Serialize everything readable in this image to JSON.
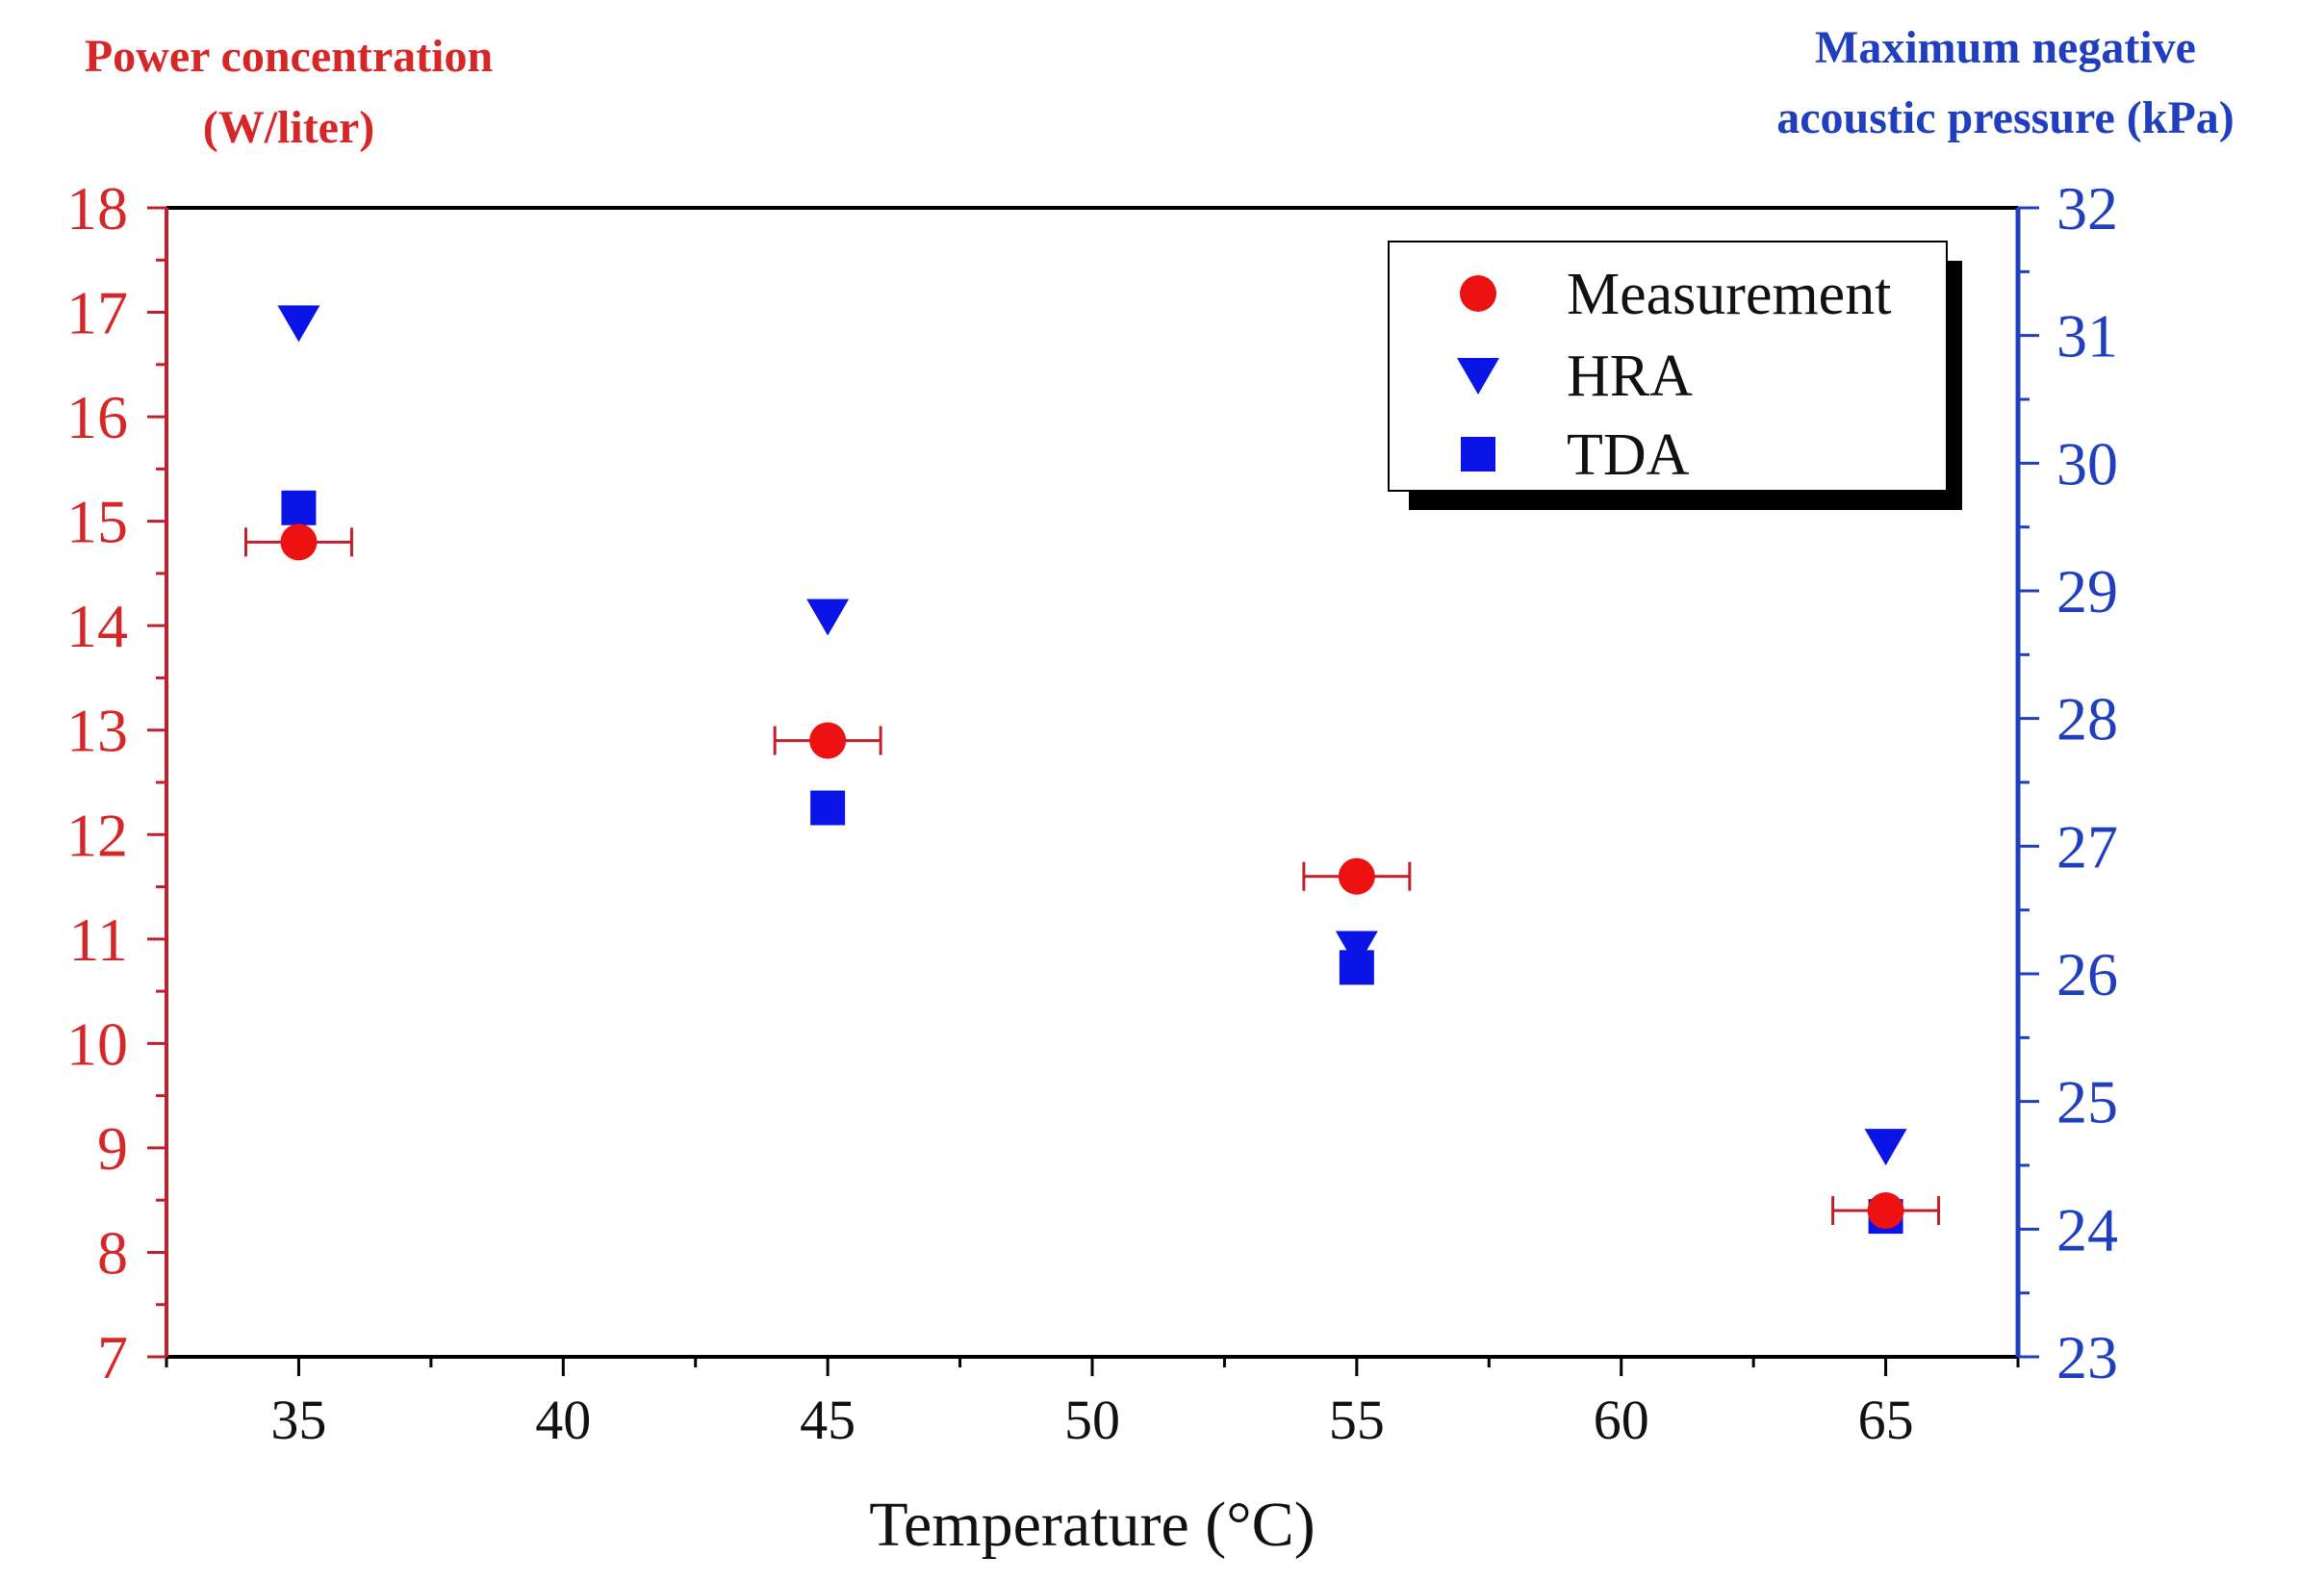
{
  "chart_data": {
    "type": "scatter",
    "x": [
      35,
      45,
      55,
      65
    ],
    "xlabel": "Temperature (°C)",
    "xlim": [
      32.5,
      67.5
    ],
    "xticks": [
      35,
      40,
      45,
      50,
      55,
      60,
      65
    ],
    "left_axis": {
      "title_line1": "Power concentration",
      "title_line2": "(W/liter)",
      "color": "#d62728",
      "ylim": [
        7,
        18
      ],
      "ticks": [
        7,
        8,
        9,
        10,
        11,
        12,
        13,
        14,
        15,
        16,
        17,
        18
      ]
    },
    "right_axis": {
      "title_line1": "Maximum negative",
      "title_line2": "acoustic pressure (kPa)",
      "color": "#1f3fbf",
      "ylim": [
        23,
        32
      ],
      "ticks": [
        23,
        24,
        25,
        26,
        27,
        28,
        29,
        30,
        31,
        32
      ]
    },
    "series": [
      {
        "name": "Measurement",
        "axis": "left",
        "marker": "circle",
        "color": "#ee1111",
        "values": [
          14.8,
          12.9,
          11.6,
          8.4
        ],
        "x_error": [
          1.0,
          1.0,
          1.0,
          1.0
        ]
      },
      {
        "name": "HRA",
        "axis": "right",
        "marker": "triangle-down",
        "color": "#0a14e6",
        "values": [
          31.1,
          28.8,
          26.2,
          24.65
        ]
      },
      {
        "name": "TDA",
        "axis": "right",
        "marker": "square",
        "color": "#0a14e6",
        "values": [
          29.65,
          27.3,
          26.05,
          24.1
        ]
      }
    ],
    "legend": {
      "placement": "top-right",
      "entries": [
        "Measurement",
        "HRA",
        "TDA"
      ]
    }
  }
}
